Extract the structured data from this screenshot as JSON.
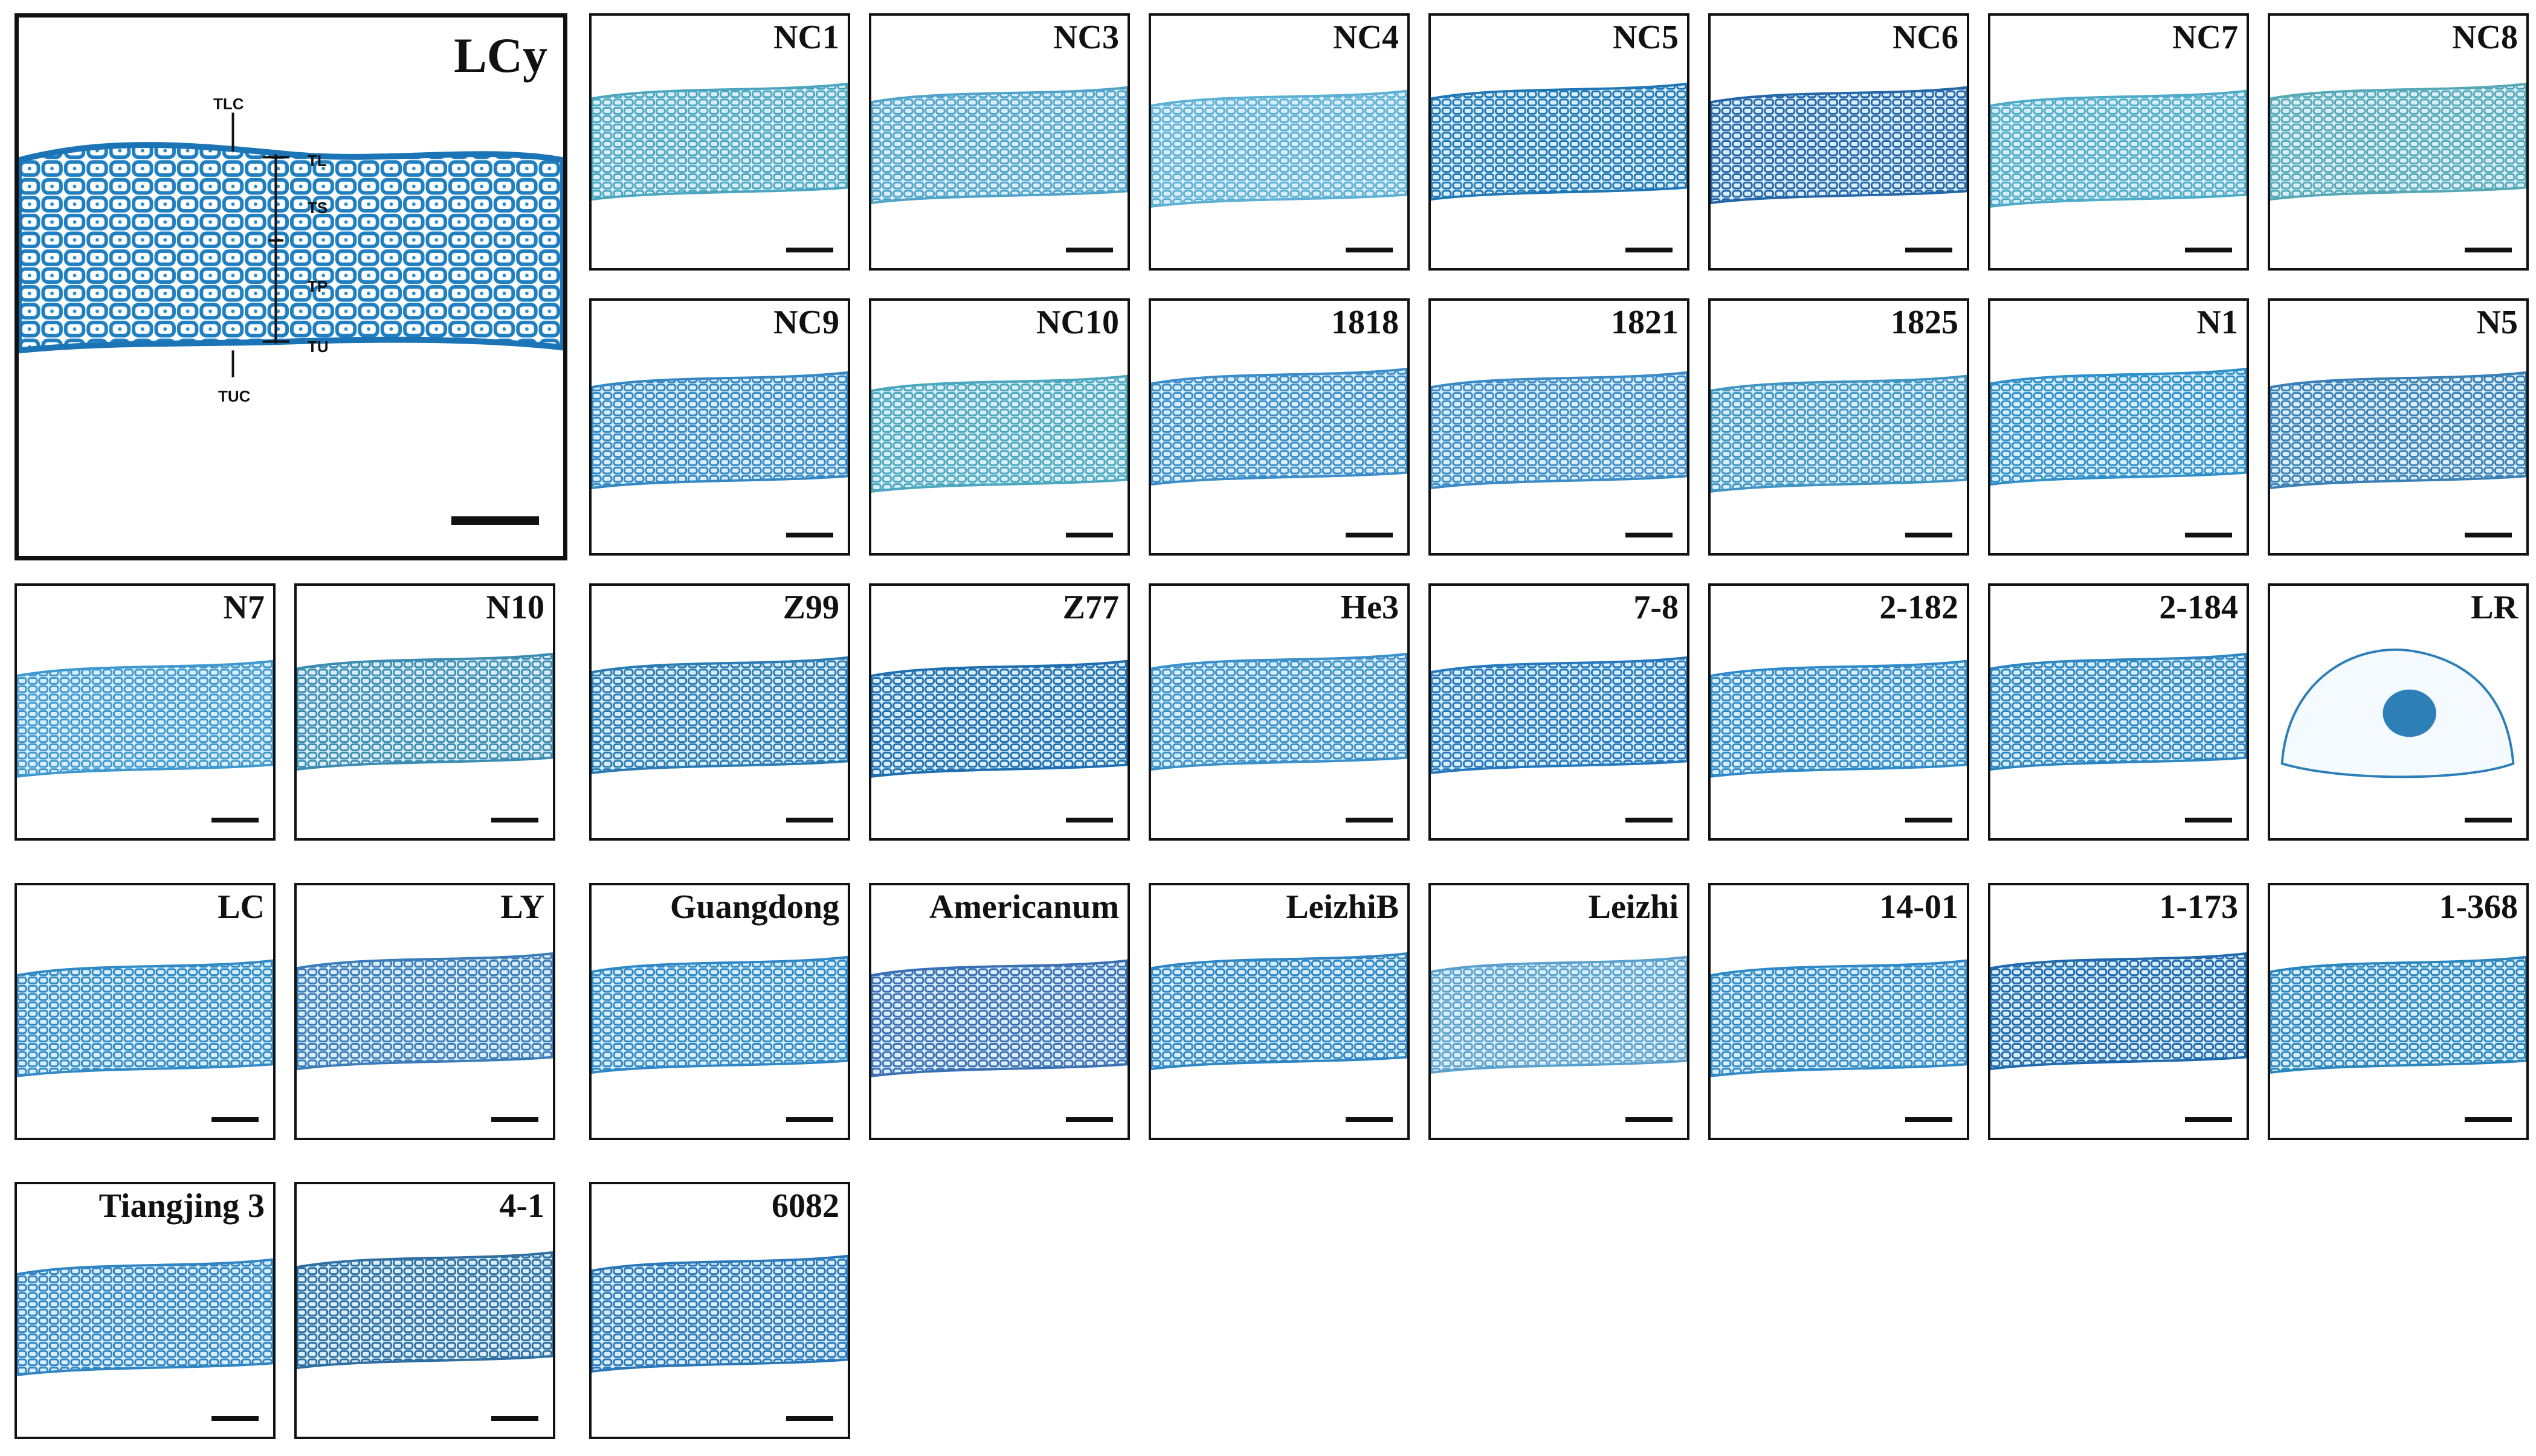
{
  "figure": {
    "main_panel": {
      "label": "LCy",
      "annotations": [
        "TLC",
        "TL",
        "TS",
        "TP",
        "TU",
        "TUC"
      ]
    },
    "panels": [
      {
        "label": "NC1",
        "tone": "#4aa6bf"
      },
      {
        "label": "NC3",
        "tone": "#4fa3c9"
      },
      {
        "label": "NC4",
        "tone": "#5cb0d4"
      },
      {
        "label": "NC5",
        "tone": "#1f77b5"
      },
      {
        "label": "NC6",
        "tone": "#2466a8"
      },
      {
        "label": "NC7",
        "tone": "#4eabc8"
      },
      {
        "label": "NC8",
        "tone": "#55a9b6"
      },
      {
        "label": "NC9",
        "tone": "#3487c2"
      },
      {
        "label": "NC10",
        "tone": "#4aa7bd"
      },
      {
        "label": "1818",
        "tone": "#3a8dc8"
      },
      {
        "label": "1821",
        "tone": "#3b8bc6"
      },
      {
        "label": "1825",
        "tone": "#3f95c2"
      },
      {
        "label": "N1",
        "tone": "#2f8fc9"
      },
      {
        "label": "N5",
        "tone": "#3a80b4"
      },
      {
        "label": "N7",
        "tone": "#3d98cf"
      },
      {
        "label": "N10",
        "tone": "#3b8cb0"
      },
      {
        "label": "Z99",
        "tone": "#2a7bb4"
      },
      {
        "label": "Z77",
        "tone": "#1f6fb0"
      },
      {
        "label": "He3",
        "tone": "#3a90c9"
      },
      {
        "label": "7-8",
        "tone": "#2478bd"
      },
      {
        "label": "2-182",
        "tone": "#2f8ac8"
      },
      {
        "label": "2-184",
        "tone": "#2c86c2"
      },
      {
        "label": "LR",
        "tone": "#2d7fb8"
      },
      {
        "label": "LC",
        "tone": "#2f8ac5"
      },
      {
        "label": "LY",
        "tone": "#3a7bb8"
      },
      {
        "label": "Guangdong",
        "tone": "#2f88c6"
      },
      {
        "label": "Americanum",
        "tone": "#3b6fb3"
      },
      {
        "label": "LeizhiB",
        "tone": "#2e86c5"
      },
      {
        "label": "Leizhi",
        "tone": "#5aa0cc"
      },
      {
        "label": "14-01",
        "tone": "#2f89c7"
      },
      {
        "label": "1-173",
        "tone": "#1e6aac"
      },
      {
        "label": "1-368",
        "tone": "#2a86bd"
      },
      {
        "label": "Tiangjing 3",
        "tone": "#2f84c3"
      },
      {
        "label": "4-1",
        "tone": "#2e6ea0"
      },
      {
        "label": "6082",
        "tone": "#2a78b9"
      }
    ]
  }
}
